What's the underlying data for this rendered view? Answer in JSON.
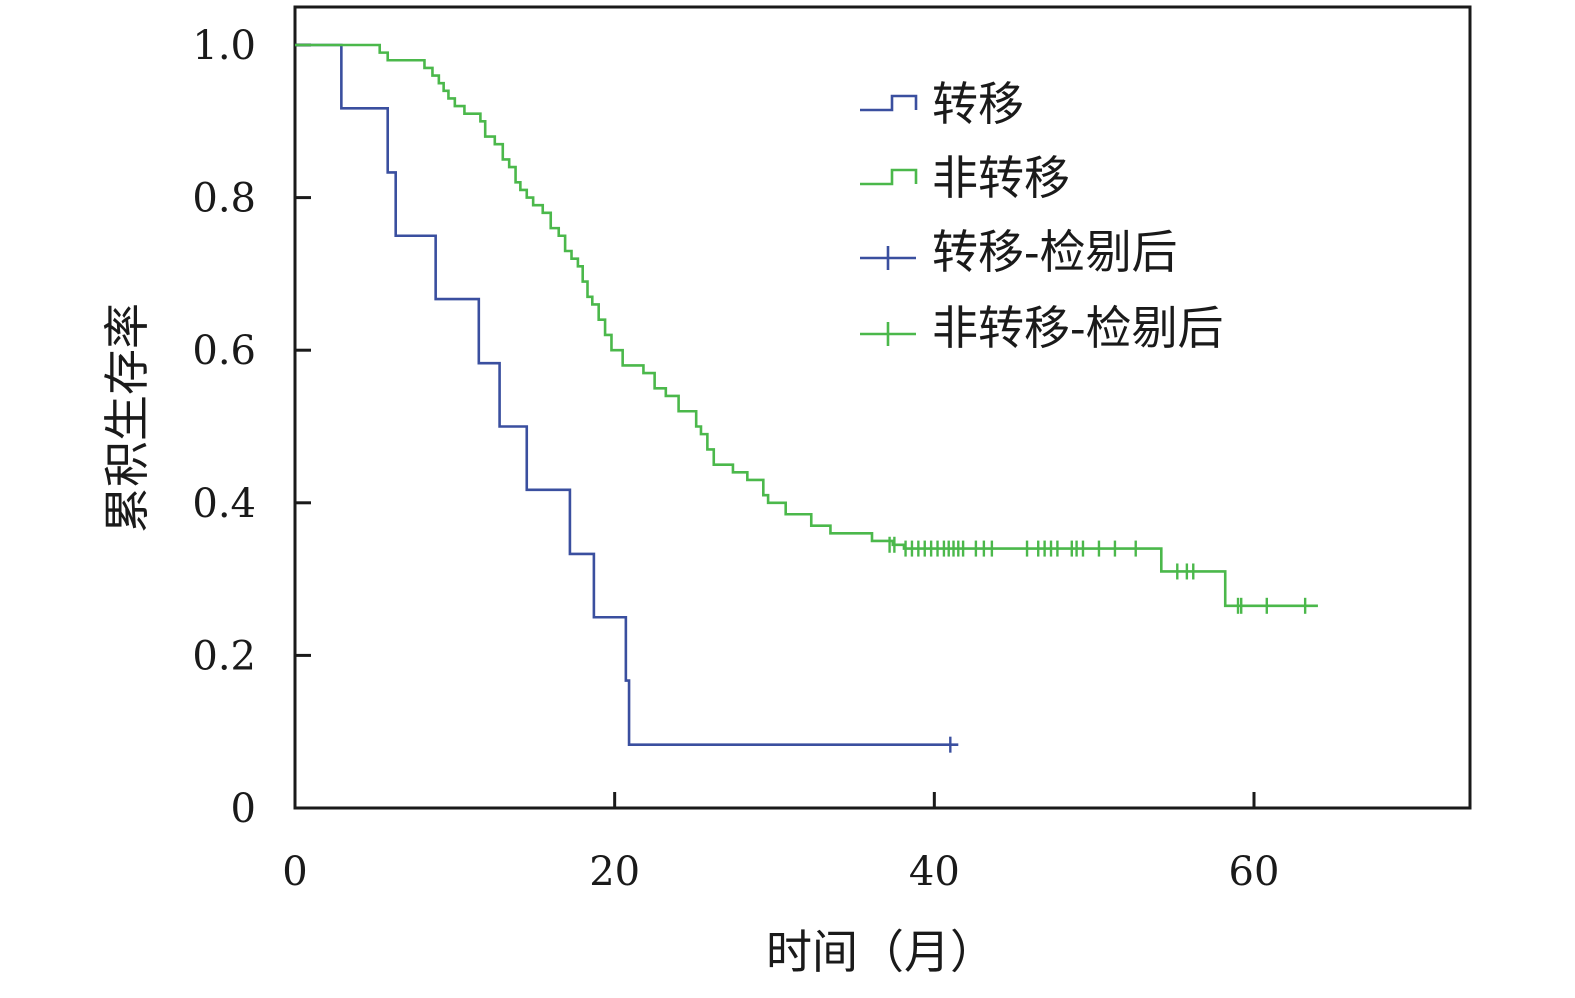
{
  "chart_data": {
    "type": "line",
    "step": true,
    "xlabel": "时间（月）",
    "ylabel": "累积生存率",
    "xlim": [
      0,
      73.5
    ],
    "ylim": [
      0,
      1.0
    ],
    "xticks": [
      0,
      20,
      40,
      60
    ],
    "xtick_labels": [
      "0",
      "20",
      "40",
      "60"
    ],
    "yticks": [
      0,
      0.2,
      0.4,
      0.6,
      0.8,
      1.0
    ],
    "ytick_labels": [
      "0",
      "0.2",
      "0.4",
      "0.6",
      "0.8",
      "1.0"
    ],
    "grid": false,
    "legend_position": "top-right",
    "legend": [
      {
        "label": "转移",
        "color": "#3a4f9f",
        "marker": "step"
      },
      {
        "label": "非转移",
        "color": "#4bb84b",
        "marker": "step"
      },
      {
        "label": "转移-检剔后",
        "color": "#3a4f9f",
        "marker": "plus"
      },
      {
        "label": "非转移-检剔后",
        "color": "#4bb84b",
        "marker": "plus"
      }
    ],
    "series": [
      {
        "key": "metastasis",
        "color": "#3a4f9f",
        "x": [
          0,
          2.9,
          5.8,
          6.3,
          8.8,
          11.5,
          12.8,
          14.5,
          17.2,
          18.7,
          20.7,
          20.9,
          41.5
        ],
        "y": [
          1.0,
          0.917,
          0.833,
          0.75,
          0.667,
          0.583,
          0.5,
          0.417,
          0.333,
          0.25,
          0.167,
          0.083,
          0.083
        ],
        "censored_x": [
          41.0
        ],
        "censored_y": [
          0.083
        ]
      },
      {
        "key": "non-metastasis",
        "color": "#4bb84b",
        "x": [
          0,
          5.3,
          5.8,
          8.1,
          8.6,
          9.0,
          9.3,
          9.6,
          10.0,
          10.6,
          11.6,
          11.9,
          12.5,
          13.0,
          13.4,
          13.8,
          14.1,
          14.5,
          14.9,
          15.5,
          16.0,
          16.5,
          16.9,
          17.3,
          17.7,
          18.0,
          18.3,
          18.6,
          19.0,
          19.4,
          19.8,
          20.5,
          21.8,
          22.5,
          23.2,
          24.0,
          25.1,
          25.4,
          25.8,
          26.2,
          27.4,
          28.3,
          29.3,
          29.6,
          30.7,
          32.3,
          33.5,
          36.1,
          37.4,
          38.1,
          54.2,
          58.2,
          64.0
        ],
        "y": [
          1.0,
          0.99,
          0.98,
          0.97,
          0.96,
          0.95,
          0.94,
          0.93,
          0.92,
          0.91,
          0.9,
          0.88,
          0.87,
          0.85,
          0.84,
          0.82,
          0.81,
          0.8,
          0.79,
          0.78,
          0.76,
          0.75,
          0.73,
          0.72,
          0.71,
          0.69,
          0.67,
          0.66,
          0.64,
          0.62,
          0.6,
          0.58,
          0.57,
          0.55,
          0.54,
          0.52,
          0.5,
          0.49,
          0.47,
          0.45,
          0.44,
          0.43,
          0.41,
          0.4,
          0.385,
          0.37,
          0.36,
          0.35,
          0.345,
          0.34,
          0.31,
          0.265,
          0.265
        ],
        "censored_x": [
          37.2,
          37.5,
          38.2,
          38.6,
          39.0,
          39.4,
          39.8,
          40.2,
          40.6,
          40.9,
          41.2,
          41.5,
          41.8,
          42.6,
          43.1,
          43.6,
          45.8,
          46.5,
          46.9,
          47.3,
          47.7,
          48.6,
          48.9,
          49.3,
          50.3,
          51.3,
          52.6,
          55.2,
          55.8,
          56.2,
          59.0,
          59.2,
          60.8,
          63.2
        ],
        "censored_y": [
          0.345,
          0.345,
          0.34,
          0.34,
          0.34,
          0.34,
          0.34,
          0.34,
          0.34,
          0.34,
          0.34,
          0.34,
          0.34,
          0.34,
          0.34,
          0.34,
          0.34,
          0.34,
          0.34,
          0.34,
          0.34,
          0.34,
          0.34,
          0.34,
          0.34,
          0.34,
          0.34,
          0.31,
          0.31,
          0.31,
          0.265,
          0.265,
          0.265,
          0.265
        ]
      }
    ]
  }
}
